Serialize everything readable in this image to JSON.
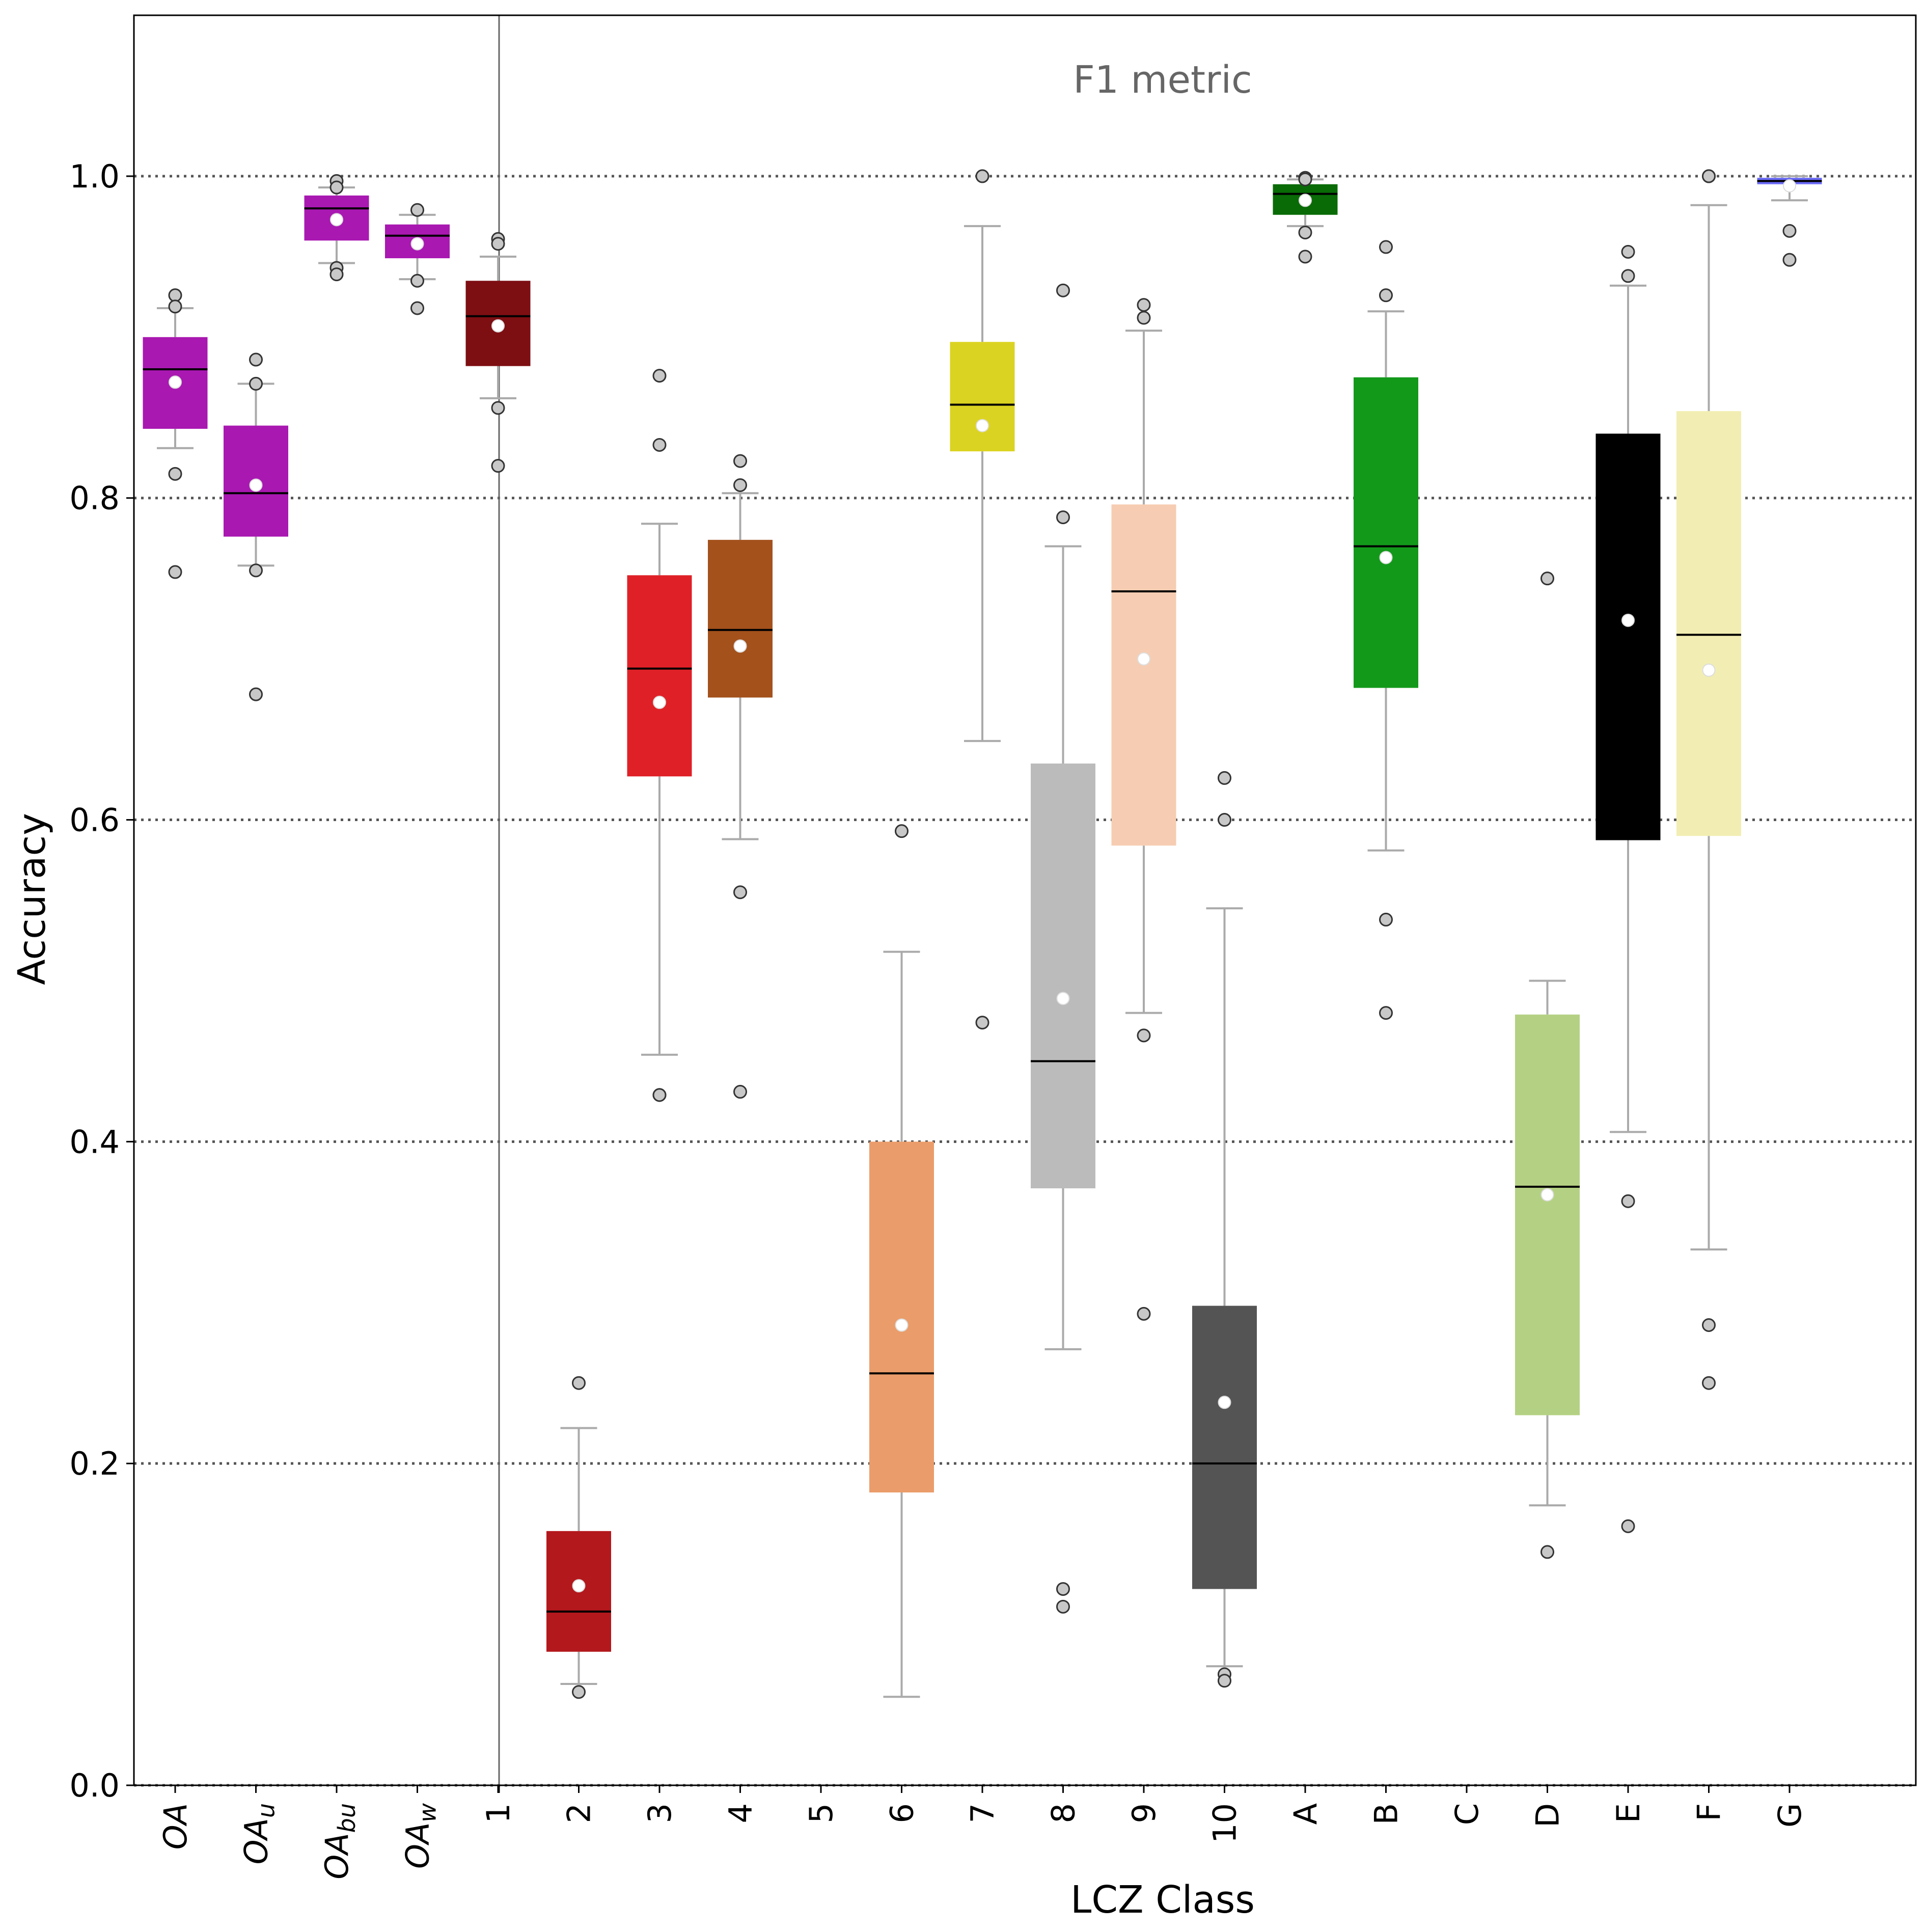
{
  "chart_data": {
    "type": "box",
    "annotation": "F1 metric",
    "xlabel": "LCZ Class",
    "ylabel": "Accuracy",
    "ylim": [
      0.0,
      1.1
    ],
    "yticks": [
      "0.0",
      "0.2",
      "0.4",
      "0.6",
      "0.8",
      "1.0"
    ],
    "ytick_values": [
      0.0,
      0.2,
      0.4,
      0.6,
      0.8,
      1.0
    ],
    "grid": "dotted horizontal at y ticks",
    "groups": [
      {
        "label": "OA",
        "base": "OA",
        "sub": "",
        "color": "#a918b1",
        "q1": 0.843,
        "median": 0.88,
        "q3": 0.9,
        "whislo": 0.831,
        "whishi": 0.918,
        "mean": 0.872,
        "fliers": [
          0.926,
          0.919,
          0.815,
          0.754
        ]
      },
      {
        "label": "OAu",
        "base": "OA",
        "sub": "u",
        "color": "#a918b1",
        "q1": 0.776,
        "median": 0.803,
        "q3": 0.845,
        "whislo": 0.758,
        "whishi": 0.871,
        "mean": 0.808,
        "fliers": [
          0.886,
          0.871,
          0.755,
          0.678
        ]
      },
      {
        "label": "OAbu",
        "base": "OA",
        "sub": "bu",
        "color": "#a918b1",
        "q1": 0.96,
        "median": 0.98,
        "q3": 0.988,
        "whislo": 0.946,
        "whishi": 0.993,
        "mean": 0.973,
        "fliers": [
          0.997,
          0.993,
          0.943,
          0.939
        ]
      },
      {
        "label": "OAw",
        "base": "OA",
        "sub": "w",
        "color": "#a918b1",
        "q1": 0.949,
        "median": 0.963,
        "q3": 0.97,
        "whislo": 0.936,
        "whishi": 0.976,
        "mean": 0.958,
        "fliers": [
          0.979,
          0.935,
          0.918
        ]
      },
      {
        "label": "1",
        "color": "#7d0e12",
        "q1": 0.882,
        "median": 0.913,
        "q3": 0.935,
        "whislo": 0.862,
        "whishi": 0.95,
        "mean": 0.907,
        "fliers": [
          0.961,
          0.958,
          0.856,
          0.82
        ]
      },
      {
        "label": "2",
        "color": "#b3181c",
        "q1": 0.083,
        "median": 0.108,
        "q3": 0.158,
        "whislo": 0.063,
        "whishi": 0.222,
        "mean": 0.124,
        "fliers": [
          0.25,
          0.058
        ]
      },
      {
        "label": "3",
        "color": "#df2127",
        "q1": 0.627,
        "median": 0.694,
        "q3": 0.752,
        "whislo": 0.454,
        "whishi": 0.784,
        "mean": 0.673,
        "fliers": [
          0.876,
          0.833,
          0.429,
          0.429
        ]
      },
      {
        "label": "4",
        "color": "#a4511c",
        "q1": 0.676,
        "median": 0.718,
        "q3": 0.774,
        "whislo": 0.588,
        "whishi": 0.803,
        "mean": 0.708,
        "fliers": [
          0.823,
          0.808,
          0.555,
          0.431
        ]
      },
      {
        "label": "5",
        "color": "#ff6600",
        "empty": true,
        "fliers": []
      },
      {
        "label": "6",
        "color": "#ea9c6a",
        "q1": 0.182,
        "median": 0.256,
        "q3": 0.4,
        "whislo": 0.055,
        "whishi": 0.518,
        "mean": 0.286,
        "fliers": [
          0.593
        ]
      },
      {
        "label": "7",
        "color": "#dbd321",
        "q1": 0.829,
        "median": 0.858,
        "q3": 0.897,
        "whislo": 0.649,
        "whishi": 0.969,
        "mean": 0.845,
        "fliers": [
          1.0,
          0.474
        ]
      },
      {
        "label": "8",
        "color": "#bbbbbb",
        "q1": 0.371,
        "median": 0.45,
        "q3": 0.635,
        "whislo": 0.271,
        "whishi": 0.77,
        "mean": 0.489,
        "fliers": [
          0.929,
          0.788,
          0.122,
          0.111
        ]
      },
      {
        "label": "9",
        "color": "#f6cdb2",
        "q1": 0.584,
        "median": 0.742,
        "q3": 0.796,
        "whislo": 0.48,
        "whishi": 0.904,
        "mean": 0.7,
        "fliers": [
          0.92,
          0.912,
          0.466,
          0.293
        ]
      },
      {
        "label": "10",
        "color": "#545454",
        "q1": 0.122,
        "median": 0.2,
        "q3": 0.298,
        "whislo": 0.074,
        "whishi": 0.545,
        "mean": 0.238,
        "fliers": [
          0.626,
          0.6,
          0.069,
          0.065
        ]
      },
      {
        "label": "A",
        "color": "#096b06",
        "q1": 0.976,
        "median": 0.989,
        "q3": 0.995,
        "whislo": 0.969,
        "whishi": 0.998,
        "mean": 0.985,
        "fliers": [
          0.999,
          0.998,
          0.965,
          0.95
        ]
      },
      {
        "label": "B",
        "color": "#12991a",
        "q1": 0.682,
        "median": 0.77,
        "q3": 0.875,
        "whislo": 0.581,
        "whishi": 0.916,
        "mean": 0.763,
        "fliers": [
          0.956,
          0.926,
          0.538,
          0.48
        ]
      },
      {
        "label": "C",
        "color": "#658c3e",
        "empty": true,
        "fliers": []
      },
      {
        "label": "D",
        "color": "#b4d183",
        "q1": 0.23,
        "median": 0.372,
        "q3": 0.479,
        "whislo": 0.174,
        "whishi": 0.5,
        "mean": 0.367,
        "fliers": [
          0.75,
          0.145
        ]
      },
      {
        "label": "E",
        "color": "#000000",
        "q1": 0.588,
        "median": 0.588,
        "q3": 0.84,
        "whislo": 0.406,
        "whishi": 0.932,
        "mean": 0.724,
        "fliers": [
          0.953,
          0.938,
          0.363,
          0.161
        ]
      },
      {
        "label": "F",
        "color": "#f2eeb3",
        "q1": 0.59,
        "median": 0.715,
        "q3": 0.854,
        "whislo": 0.333,
        "whishi": 0.982,
        "mean": 0.693,
        "fliers": [
          1.0,
          1.0,
          0.286,
          0.25
        ]
      },
      {
        "label": "G",
        "color": "#6a6af6",
        "q1": 0.995,
        "median": 0.997,
        "q3": 0.999,
        "whislo": 0.985,
        "whishi": 1.0,
        "mean": 0.994,
        "fliers": [
          0.966,
          0.948
        ]
      }
    ]
  }
}
